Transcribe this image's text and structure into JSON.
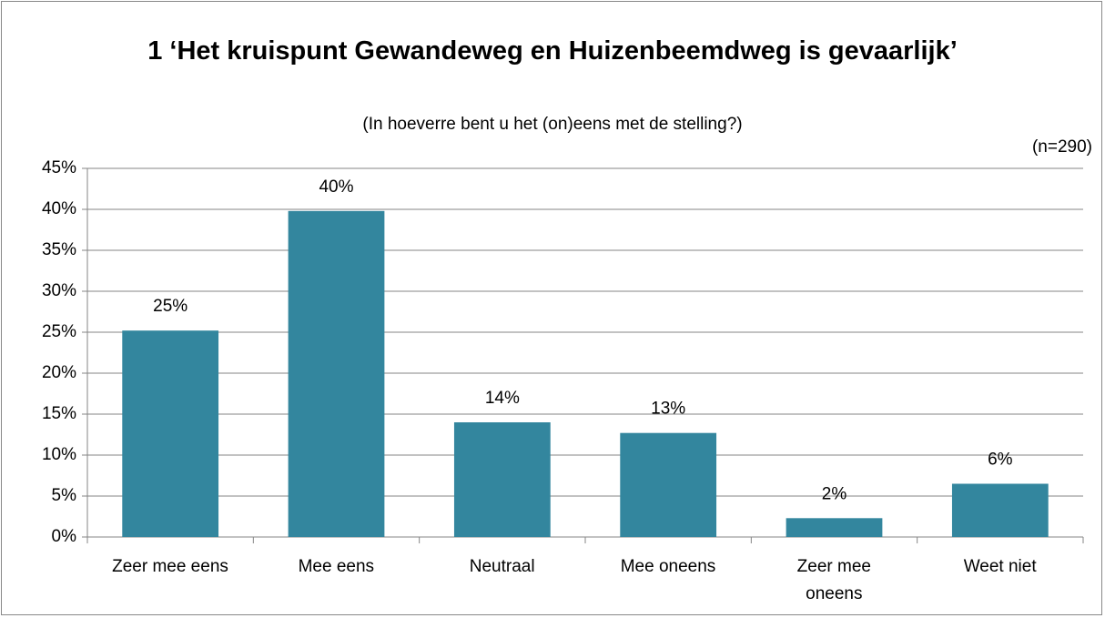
{
  "chart_data": {
    "type": "bar",
    "title": "1 ‘Het kruispunt Gewandeweg en Huizenbeemdweg is gevaarlijk’",
    "subtitle": "(In hoeverre bent u het (on)eens met de stelling?)",
    "annotation": "(n=290)",
    "categories": [
      "Zeer mee eens",
      "Mee eens",
      "Neutraal",
      "Mee oneens",
      "Zeer mee\noneens",
      "Weet niet"
    ],
    "values": [
      25.2,
      39.8,
      14.0,
      12.7,
      2.3,
      6.5
    ],
    "value_labels": [
      "25%",
      "40%",
      "14%",
      "13%",
      "2%",
      "6%"
    ],
    "color": "#33869e",
    "ylim": [
      0,
      45
    ],
    "yticks": [
      {
        "value": 0,
        "label": "0%"
      },
      {
        "value": 5,
        "label": "5%"
      },
      {
        "value": 10,
        "label": "10%"
      },
      {
        "value": 15,
        "label": "15%"
      },
      {
        "value": 20,
        "label": "20%"
      },
      {
        "value": 25,
        "label": "25%"
      },
      {
        "value": 30,
        "label": "30%"
      },
      {
        "value": 35,
        "label": "35%"
      },
      {
        "value": 40,
        "label": "40%"
      },
      {
        "value": 45,
        "label": "45%"
      }
    ],
    "grid": true
  }
}
